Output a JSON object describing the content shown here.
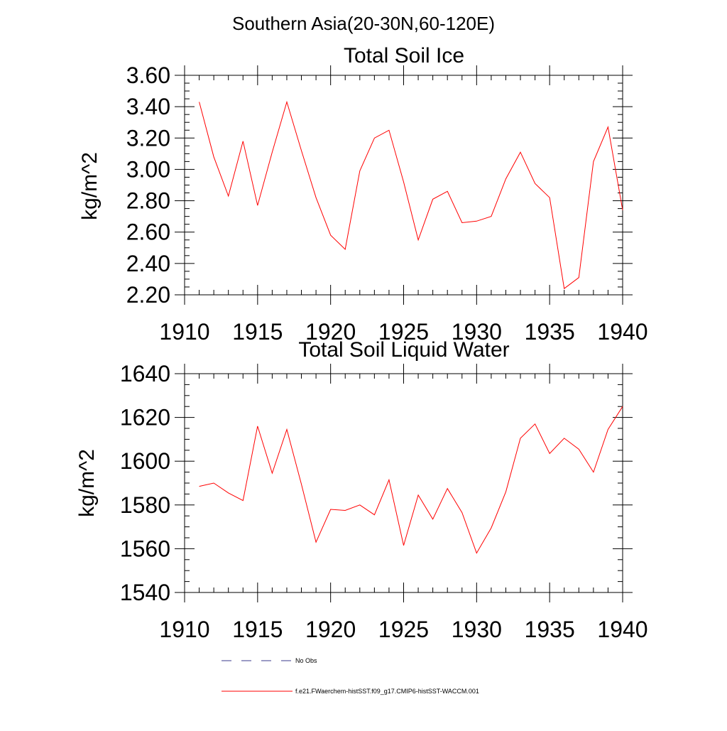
{
  "figure": {
    "title": "Southern Asia(20-30N,60-120E)"
  },
  "chart_data": [
    {
      "type": "line",
      "title": "Total Soil Ice",
      "xlabel": "",
      "ylabel": "kg/m^2",
      "xlim": [
        1910,
        1940
      ],
      "ylim": [
        2.2,
        3.6
      ],
      "x_ticks": [
        1910,
        1915,
        1920,
        1925,
        1930,
        1935,
        1940
      ],
      "x_tick_labels": [
        "1910",
        "1915",
        "1920",
        "1925",
        "1930",
        "1935",
        "1940"
      ],
      "y_ticks": [
        2.2,
        2.4,
        2.6,
        2.8,
        3.0,
        3.2,
        3.4,
        3.6
      ],
      "y_tick_labels": [
        "2.20",
        "2.40",
        "2.60",
        "2.80",
        "3.00",
        "3.20",
        "3.40",
        "3.60"
      ],
      "grid": false,
      "series": [
        {
          "color": "#ff0000",
          "x": [
            1911,
            1912,
            1913,
            1914,
            1915,
            1916,
            1917,
            1918,
            1919,
            1920,
            1921,
            1922,
            1923,
            1924,
            1925,
            1926,
            1927,
            1928,
            1929,
            1930,
            1931,
            1932,
            1933,
            1934,
            1935,
            1936,
            1937,
            1938,
            1939,
            1940
          ],
          "values": [
            3.43,
            3.08,
            2.83,
            3.18,
            2.77,
            3.11,
            3.43,
            3.12,
            2.82,
            2.58,
            2.49,
            2.99,
            3.2,
            3.25,
            2.92,
            2.55,
            2.81,
            2.86,
            2.66,
            2.67,
            2.7,
            2.94,
            3.11,
            2.91,
            2.82,
            2.24,
            2.31,
            3.05,
            3.27,
            2.74
          ]
        }
      ]
    },
    {
      "type": "line",
      "title": "Total Soil Liquid Water",
      "xlabel": "",
      "ylabel": "kg/m^2",
      "xlim": [
        1910,
        1940
      ],
      "ylim": [
        1540,
        1640
      ],
      "x_ticks": [
        1910,
        1915,
        1920,
        1925,
        1930,
        1935,
        1940
      ],
      "x_tick_labels": [
        "1910",
        "1915",
        "1920",
        "1925",
        "1930",
        "1935",
        "1940"
      ],
      "y_ticks": [
        1540,
        1560,
        1580,
        1600,
        1620,
        1640
      ],
      "y_tick_labels": [
        "1540",
        "1560",
        "1580",
        "1600",
        "1620",
        "1640"
      ],
      "grid": false,
      "series": [
        {
          "color": "#ff0000",
          "x": [
            1911,
            1912,
            1913,
            1914,
            1915,
            1916,
            1917,
            1918,
            1919,
            1920,
            1921,
            1922,
            1923,
            1924,
            1925,
            1926,
            1927,
            1928,
            1929,
            1930,
            1931,
            1932,
            1933,
            1934,
            1935,
            1936,
            1937,
            1938,
            1939,
            1940
          ],
          "values": [
            1588.5,
            1590,
            1585.5,
            1582,
            1616,
            1594.5,
            1614.5,
            1589.5,
            1563,
            1578,
            1577.5,
            1580,
            1575.5,
            1591.5,
            1561.5,
            1584.5,
            1573.5,
            1587.5,
            1576.5,
            1558,
            1569.5,
            1586,
            1610.5,
            1617,
            1603.5,
            1610.5,
            1605.5,
            1595,
            1614.5,
            1625
          ]
        }
      ]
    }
  ],
  "legend": [
    {
      "label": "No Obs",
      "style": "dashed",
      "color": "#3a3a8c"
    },
    {
      "label": "f.e21.FWaerchem-histSST.f09_g17.CMIP6-histSST-WACCM.001",
      "style": "solid",
      "color": "#ff0000"
    }
  ]
}
